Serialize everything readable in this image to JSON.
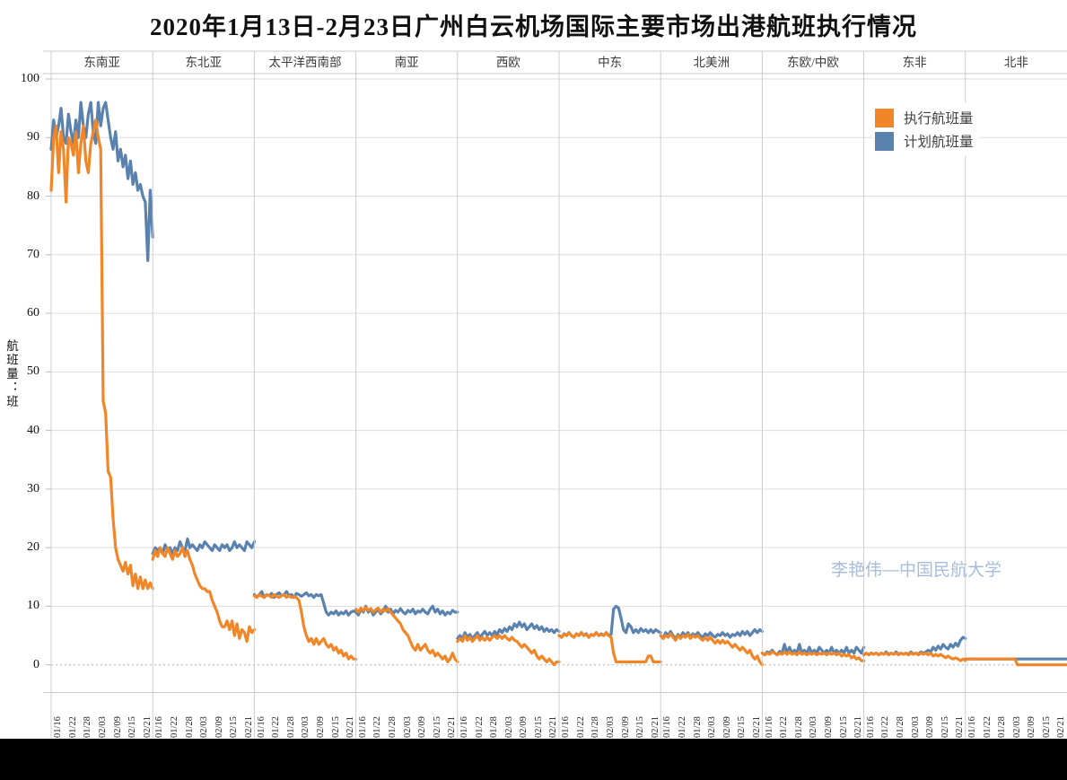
{
  "title": "2020年1月13日-2月23日广州白云机场国际主要市场出港航班执行情况",
  "watermark": "李艳伟—中国民航大学",
  "legend": {
    "items": [
      {
        "label": "执行航班量",
        "color": "#F08628"
      },
      {
        "label": "计划航班量",
        "color": "#5A82AF"
      }
    ]
  },
  "y_axis": {
    "title": "航班量：班",
    "ticks": [
      0,
      10,
      20,
      30,
      40,
      50,
      60,
      70,
      80,
      90,
      100
    ],
    "range": [
      0,
      100
    ]
  },
  "x_axis": {
    "tick_labels": [
      "01/16",
      "01/22",
      "01/28",
      "02/03",
      "02/09",
      "02/15",
      "02/21"
    ],
    "tick_day_indices": [
      3,
      9,
      15,
      21,
      27,
      33,
      39
    ]
  },
  "chart_data": {
    "type": "line",
    "title": "2020年1月13日-2月23日广州白云机场国际主要市场出港航班执行情况",
    "ylabel": "航班量：班",
    "ylim": [
      0,
      100
    ],
    "grid": true,
    "legend_position": "top-right",
    "series_meta": [
      {
        "key": "planned",
        "label": "计划航班量",
        "color": "#5A82AF"
      },
      {
        "key": "executed",
        "label": "执行航班量",
        "color": "#F08628"
      }
    ],
    "x": [
      "01/13",
      "01/14",
      "01/15",
      "01/16",
      "01/17",
      "01/18",
      "01/19",
      "01/20",
      "01/21",
      "01/22",
      "01/23",
      "01/24",
      "01/25",
      "01/26",
      "01/27",
      "01/28",
      "01/29",
      "01/30",
      "01/31",
      "02/01",
      "02/02",
      "02/03",
      "02/04",
      "02/05",
      "02/06",
      "02/07",
      "02/08",
      "02/09",
      "02/10",
      "02/11",
      "02/12",
      "02/13",
      "02/14",
      "02/15",
      "02/16",
      "02/17",
      "02/18",
      "02/19",
      "02/20",
      "02/21",
      "02/22",
      "02/23"
    ],
    "facets": [
      {
        "region": "东南亚",
        "planned": [
          88,
          93,
          90,
          92,
          95,
          90,
          89,
          94,
          91,
          89,
          93,
          90,
          96,
          92,
          90,
          94,
          96,
          91,
          89,
          96,
          92,
          95,
          96,
          93,
          90,
          88,
          91,
          86,
          88,
          85,
          87,
          83,
          86,
          82,
          84,
          81,
          82,
          80,
          79,
          69,
          81,
          73
        ],
        "executed": [
          81,
          90,
          92,
          84,
          91,
          88,
          79,
          90,
          89,
          87,
          91,
          84,
          89,
          92,
          86,
          84,
          89,
          91,
          93,
          90,
          88,
          45,
          43,
          33,
          32,
          25,
          20,
          18,
          17,
          16,
          17.5,
          15.5,
          17,
          13.5,
          15.5,
          13,
          15,
          13,
          14.5,
          13,
          14,
          13
        ]
      },
      {
        "region": "东北亚",
        "planned": [
          19,
          20,
          19.5,
          20,
          19,
          20.5,
          19.5,
          20,
          19,
          20,
          19.5,
          21,
          20,
          19.5,
          21.5,
          20,
          20.5,
          20,
          19.5,
          20.5,
          20,
          21,
          20.5,
          20,
          19.5,
          20.5,
          20,
          19.5,
          20.5,
          20,
          20.5,
          19.5,
          20,
          21,
          20,
          20.5,
          20,
          19.5,
          21,
          20.5,
          20,
          21
        ],
        "executed": [
          18,
          19.5,
          18.5,
          20,
          19,
          18.5,
          20,
          19,
          18,
          19.5,
          18.5,
          19,
          20,
          18.5,
          19.5,
          18,
          17,
          15.5,
          14.5,
          13.5,
          13,
          13,
          12.5,
          12.5,
          11,
          10,
          9,
          7.5,
          6.5,
          6.5,
          7.5,
          6,
          7.5,
          5,
          7,
          4.5,
          6,
          5.5,
          4,
          6.5,
          5.5,
          6
        ]
      },
      {
        "region": "太平洋西南部",
        "planned": [
          12,
          11.5,
          12,
          12.5,
          11.5,
          12,
          11.8,
          12.2,
          11.5,
          12,
          12.3,
          11.8,
          12,
          12.5,
          11.8,
          12,
          11.5,
          12.2,
          12,
          11.7,
          12,
          12.3,
          11.8,
          12,
          11.5,
          12,
          11.8,
          12,
          10.5,
          9,
          8.5,
          9,
          8.7,
          9.2,
          8.5,
          9,
          8.7,
          9.2,
          8.5,
          9,
          9.2,
          9
        ],
        "executed": [
          11.8,
          11.5,
          12,
          11.7,
          11.5,
          12,
          11.8,
          11.5,
          12,
          11.7,
          11.5,
          11.8,
          12,
          11.5,
          11.8,
          11.5,
          11.7,
          11.5,
          11,
          9,
          6.5,
          5,
          4,
          4.5,
          3.5,
          4.5,
          3.5,
          4,
          4.5,
          3.5,
          3,
          3.5,
          2.5,
          3,
          2,
          2.5,
          1.5,
          2,
          1,
          1.5,
          1,
          1
        ]
      },
      {
        "region": "南亚",
        "planned": [
          9,
          8.5,
          9.5,
          9,
          10,
          9,
          9.5,
          8.5,
          9,
          9.5,
          8.7,
          9.2,
          10,
          9,
          9.5,
          8.7,
          9.3,
          9,
          9.6,
          9,
          8.7,
          9.3,
          9,
          9.5,
          8.7,
          9.2,
          9,
          9.5,
          9,
          8.7,
          9.5,
          10,
          9,
          9.5,
          8.7,
          9.2,
          8.5,
          9,
          8.7,
          9.3,
          9,
          9
        ],
        "executed": [
          9.5,
          9,
          9.7,
          9.2,
          9.8,
          9.3,
          9.6,
          9,
          9.4,
          9.7,
          9,
          9.5,
          9.2,
          9.6,
          9,
          8.5,
          8,
          7.5,
          7,
          6,
          5.5,
          5,
          4,
          3,
          2.5,
          3.5,
          2.5,
          3,
          3.5,
          2.5,
          2,
          2.5,
          1.5,
          2,
          1.5,
          1,
          1.5,
          0.5,
          1,
          2,
          1,
          0.5
        ]
      },
      {
        "region": "西欧",
        "planned": [
          4.5,
          5,
          4.5,
          5.5,
          4.7,
          5.2,
          4.5,
          5,
          5.5,
          4.7,
          5.2,
          5.7,
          5,
          5.5,
          5,
          5.7,
          5.2,
          6,
          5.5,
          6.2,
          5.7,
          6.5,
          6,
          7,
          6.5,
          7.3,
          6.5,
          7,
          6,
          6.5,
          7,
          6.2,
          6.7,
          6,
          6.5,
          5.7,
          6.2,
          5.7,
          6,
          5.5,
          6,
          5.7
        ],
        "executed": [
          4,
          4.5,
          4,
          5,
          4.2,
          4.7,
          4,
          4.5,
          5,
          4.2,
          4.7,
          4.2,
          4.7,
          4.2,
          4.7,
          5,
          4.5,
          5,
          4.5,
          5,
          4.5,
          4.2,
          4.7,
          4.2,
          4,
          3.5,
          3,
          3.5,
          3,
          2.5,
          2,
          2.5,
          1.5,
          1,
          1.5,
          1,
          0.5,
          1,
          0.5,
          0,
          0.5,
          0.5
        ]
      },
      {
        "region": "中东",
        "planned": [
          5,
          4.7,
          5.3,
          5,
          5.5,
          5,
          4.7,
          5.3,
          5,
          5.5,
          5,
          5.3,
          4.7,
          5.2,
          5,
          5.5,
          5,
          5.3,
          5,
          5.5,
          5,
          5.2,
          9.5,
          10,
          9.7,
          8,
          6,
          5.5,
          7,
          6.5,
          5.5,
          6,
          5.5,
          6.2,
          5.7,
          6,
          5.5,
          6,
          5.5,
          6,
          5.7,
          5.5
        ],
        "executed": [
          5,
          4.7,
          5.2,
          5,
          5.5,
          5,
          4.7,
          5.3,
          5,
          5.5,
          5,
          5.2,
          4.7,
          5.2,
          5,
          5.5,
          5,
          5.2,
          5,
          5.5,
          5,
          4.7,
          2,
          0.5,
          0.5,
          0.5,
          0.5,
          0.5,
          0.5,
          0.5,
          0.5,
          0.5,
          0.5,
          0.5,
          0.5,
          0.5,
          1.5,
          1.5,
          0.5,
          0.5,
          0.5,
          0.5
        ]
      },
      {
        "region": "北美洲",
        "planned": [
          5,
          4.5,
          5.5,
          5,
          5.7,
          5,
          4.5,
          5.2,
          4.7,
          5.5,
          5,
          5.5,
          4.7,
          5.3,
          5,
          5.5,
          5,
          4.7,
          5.3,
          5,
          5.5,
          5,
          4.7,
          5.2,
          5,
          5.5,
          5,
          5.3,
          4.7,
          5.2,
          5,
          5.5,
          5,
          5.7,
          5.2,
          5.7,
          5,
          5.5,
          6,
          5.5,
          6,
          5.7
        ],
        "executed": [
          5,
          4.5,
          5,
          4.7,
          5.3,
          4.7,
          4.2,
          5,
          4.5,
          5,
          4.7,
          5.2,
          4.5,
          5,
          4.7,
          5,
          4.5,
          4.2,
          4.7,
          4.2,
          4.7,
          4.2,
          3.7,
          4.2,
          3.7,
          4.2,
          3.7,
          4,
          3.5,
          3,
          3.5,
          3,
          2.5,
          3,
          2.5,
          2,
          2.5,
          1.5,
          1,
          1.5,
          0.5,
          0
        ]
      },
      {
        "region": "东欧/中欧",
        "planned": [
          2,
          1.7,
          2.2,
          2,
          2.5,
          2,
          1.7,
          2.3,
          2,
          3.5,
          2,
          3,
          2,
          2.5,
          2,
          3.5,
          2,
          2.5,
          2,
          3,
          2,
          2.5,
          2,
          3,
          2.5,
          2,
          2.5,
          2,
          3,
          2,
          2.5,
          2,
          2.5,
          2,
          3,
          2,
          2.5,
          2,
          3,
          2.5,
          2,
          3
        ],
        "executed": [
          2,
          1.7,
          2,
          1.8,
          2.2,
          2,
          1.7,
          2,
          1.8,
          2.2,
          1.8,
          2.2,
          1.8,
          2,
          1.7,
          2.2,
          1.8,
          2,
          1.7,
          2,
          1.8,
          2,
          1.7,
          2,
          1.8,
          2,
          1.7,
          2,
          1.8,
          2,
          1.7,
          2,
          1.5,
          1.8,
          1.5,
          1.8,
          1.2,
          1.5,
          1,
          1.2,
          0.7,
          0.7
        ]
      },
      {
        "region": "东非",
        "planned": [
          1.7,
          2,
          1.7,
          2,
          1.8,
          2,
          1.7,
          2,
          1.8,
          2.2,
          1.8,
          2,
          1.8,
          2.2,
          1.8,
          2,
          1.8,
          2,
          1.8,
          2.2,
          1.8,
          2,
          1.8,
          2.2,
          2,
          2.2,
          2.5,
          2.2,
          3,
          2.5,
          3.2,
          2.7,
          3.5,
          3,
          2.7,
          3.5,
          3,
          3.7,
          3.2,
          4.2,
          4.7,
          4.5
        ],
        "executed": [
          1.7,
          2,
          1.7,
          2,
          1.8,
          2,
          1.7,
          2,
          1.8,
          2,
          1.7,
          2,
          1.8,
          2,
          1.7,
          2,
          1.8,
          2,
          1.7,
          2,
          1.8,
          2,
          1.7,
          2,
          1.8,
          2,
          1.7,
          2,
          1.5,
          1.8,
          1.5,
          1.8,
          1.5,
          1.2,
          1.5,
          1.2,
          1,
          1.2,
          1,
          0.7,
          1,
          0.7
        ]
      },
      {
        "region": "北非",
        "planned": [
          1,
          1,
          1,
          1,
          1,
          1,
          1,
          1,
          1,
          1,
          1,
          1,
          1,
          1,
          1,
          1,
          1,
          1,
          1,
          1,
          1,
          1,
          1,
          1,
          1,
          1,
          1,
          1,
          1,
          1,
          1,
          1,
          1,
          1,
          1,
          1,
          1,
          1,
          1,
          1,
          1,
          1
        ],
        "executed": [
          1,
          1,
          1,
          1,
          1,
          1,
          1,
          1,
          1,
          1,
          1,
          1,
          1,
          1,
          1,
          1,
          1,
          1,
          1,
          1,
          1,
          0,
          0,
          0,
          0,
          0,
          0,
          0,
          0,
          0,
          0,
          0,
          0,
          0,
          0,
          0,
          0,
          0,
          0,
          0,
          0,
          0
        ]
      }
    ]
  }
}
